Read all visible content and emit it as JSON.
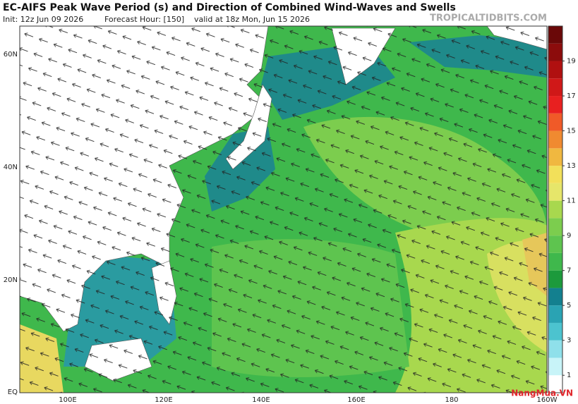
{
  "header": {
    "title": "EC-AIFS Peak Wave Period (s) and Direction of Combined Wind-Waves and Swells",
    "init": "Init: 12z Jun 09 2026",
    "forecast_hour": "Forecast Hour: [150]",
    "valid": "valid at 18z Mon, Jun 15 2026",
    "source": "TROPICALTIDBITS.COM"
  },
  "axes": {
    "lat_labels": [
      "60N",
      "40N",
      "20N",
      "EQ"
    ],
    "lon_labels": [
      "100E",
      "120E",
      "140E",
      "160E",
      "180",
      "160W"
    ]
  },
  "colorbar": {
    "labels": [
      1,
      3,
      5,
      7,
      9,
      11,
      13,
      15,
      17,
      19
    ]
  },
  "watermark": "NangMua.VN"
}
